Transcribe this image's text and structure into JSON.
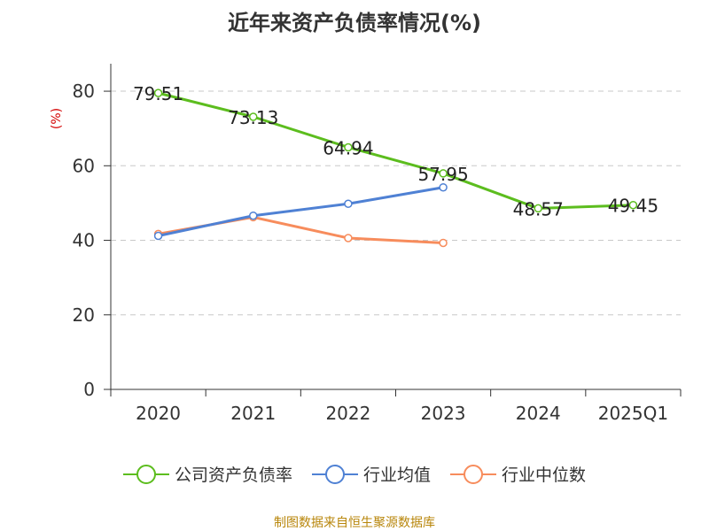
{
  "colors": {
    "series_1": "#5cbd1e",
    "series_2": "#4f81d4",
    "series_3": "#f78c5c",
    "unit": "#d40000",
    "source": "#b8860b"
  },
  "chart_data": {
    "type": "line",
    "title": "近年来资产负债率情况(%)",
    "unit_label": "(%)",
    "categories": [
      "2020",
      "2021",
      "2022",
      "2023",
      "2024",
      "2025Q1"
    ],
    "y_ticks": [
      "0",
      "20",
      "40",
      "60",
      "80"
    ],
    "ylim": [
      0,
      85
    ],
    "grid": true,
    "legend_position": "bottom",
    "series": [
      {
        "name": "公司资产负债率",
        "values": [
          79.51,
          73.13,
          64.94,
          57.95,
          48.57,
          49.45
        ],
        "labels": [
          "79.51",
          "73.13",
          "64.94",
          "57.95",
          "48.57",
          "49.45"
        ]
      },
      {
        "name": "行业均值",
        "values": [
          41.2,
          46.6,
          49.8,
          54.2,
          null,
          null
        ]
      },
      {
        "name": "行业中位数",
        "values": [
          41.7,
          46.2,
          40.6,
          39.3,
          null,
          null
        ]
      }
    ],
    "source": "制图数据来自恒生聚源数据库"
  }
}
